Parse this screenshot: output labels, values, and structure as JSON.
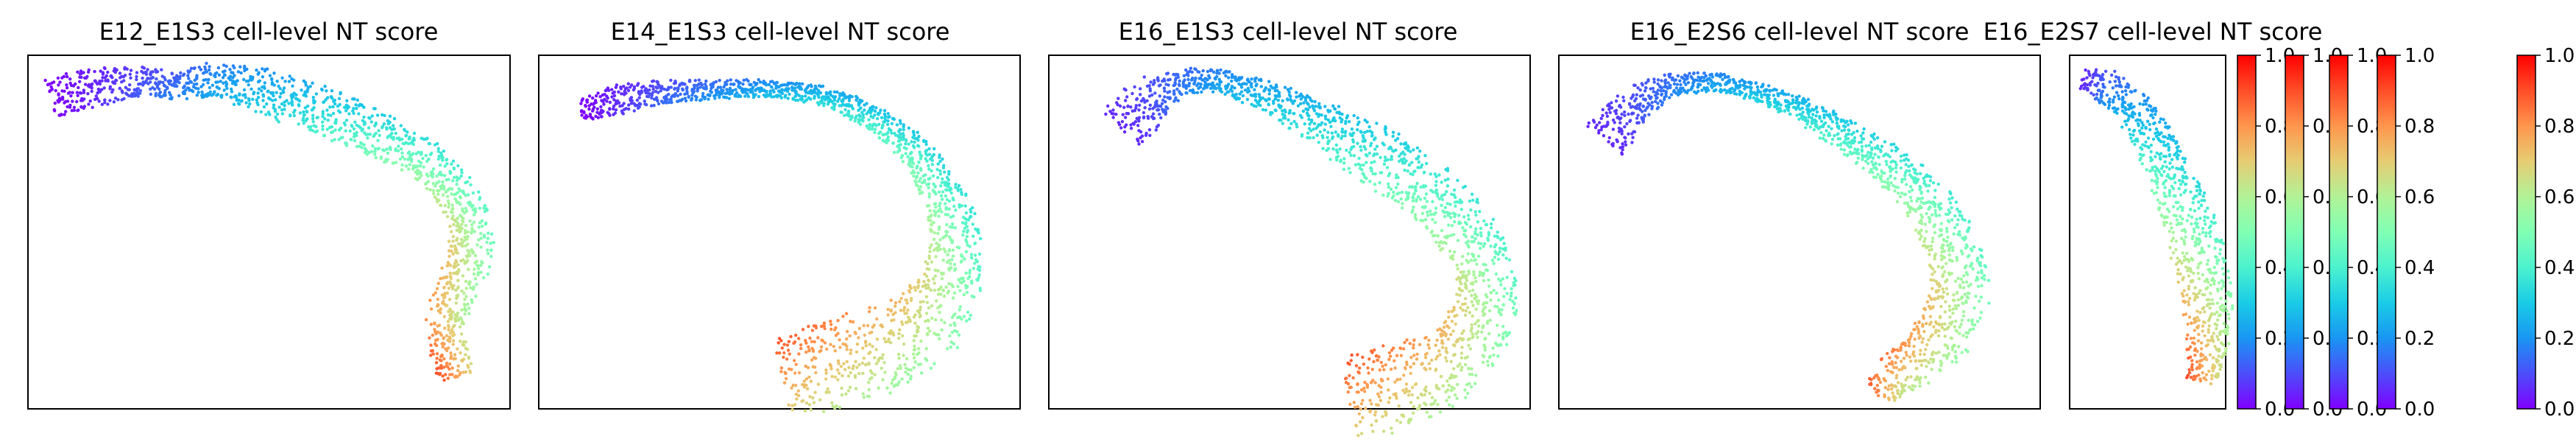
{
  "figure": {
    "panels": [
      {
        "id": "E12_E1S3",
        "title": "E12_E1S3 cell-level NT score"
      },
      {
        "id": "E14_E1S3",
        "title": "E14_E1S3 cell-level NT score"
      },
      {
        "id": "E16_E1S3",
        "title": "E16_E1S3 cell-level NT score"
      },
      {
        "id": "E16_E2S6",
        "title": "E16_E2S6 cell-level NT score"
      },
      {
        "id": "E16_E2S7",
        "title": "E16_E2S7 cell-level NT score"
      }
    ],
    "colorbar": {
      "count": 5,
      "colormap": "rainbow",
      "ticks": [
        "0.0",
        "0.2",
        "0.4",
        "0.6",
        "0.8",
        "1.0"
      ]
    }
  },
  "chart_data": [
    {
      "type": "scatter",
      "title": "E12_E1S3 cell-level NT score",
      "xlabel": "",
      "ylabel": "",
      "axes_ticks": false,
      "color_value": "NT score",
      "clim": [
        0,
        1
      ],
      "colormap": "rainbow",
      "shape": "arc",
      "color_gradient": {
        "start": 0.0,
        "end": 0.8
      },
      "series": [
        {
          "values_description": "cells colored by NT score along the tissue arc"
        }
      ]
    },
    {
      "type": "scatter",
      "title": "E14_E1S3 cell-level NT score",
      "xlabel": "",
      "ylabel": "",
      "axes_ticks": false,
      "clim": [
        0,
        1
      ],
      "colormap": "rainbow",
      "shape": "arc",
      "color_gradient": {
        "start": 0.0,
        "end": 0.8
      }
    },
    {
      "type": "scatter",
      "title": "E16_E1S3 cell-level NT score",
      "xlabel": "",
      "ylabel": "",
      "axes_ticks": false,
      "clim": [
        0,
        1
      ],
      "colormap": "rainbow",
      "shape": "arc",
      "color_gradient": {
        "start": 0.05,
        "end": 0.8
      }
    },
    {
      "type": "scatter",
      "title": "E16_E2S6 cell-level NT score",
      "xlabel": "",
      "ylabel": "",
      "axes_ticks": false,
      "clim": [
        0,
        1
      ],
      "colormap": "rainbow",
      "shape": "arc",
      "color_gradient": {
        "start": 0.05,
        "end": 0.8
      }
    },
    {
      "type": "scatter",
      "title": "E16_E2S7 cell-level NT score",
      "xlabel": "",
      "ylabel": "",
      "axes_ticks": false,
      "clim": [
        0,
        1
      ],
      "colormap": "rainbow",
      "shape": "arc",
      "color_gradient": {
        "start": 0.05,
        "end": 0.8
      }
    }
  ]
}
